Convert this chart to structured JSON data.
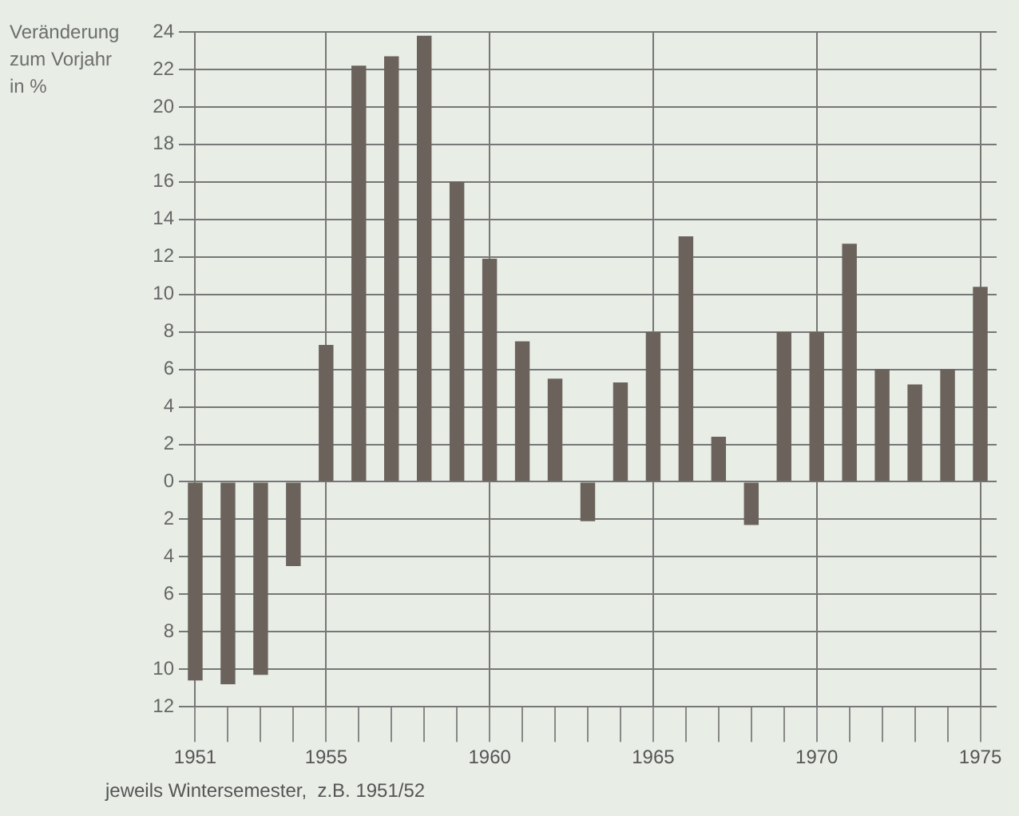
{
  "chart_data": {
    "type": "bar",
    "ylabel": "Veränderung zum Vorjahr in %",
    "xlabel": "jeweils Wintersemester,  z.B. 1951/52",
    "categories": [
      "1951",
      null,
      null,
      null,
      "1955",
      null,
      null,
      null,
      null,
      "1960",
      null,
      null,
      null,
      null,
      "1965",
      null,
      null,
      null,
      null,
      "1970",
      null,
      null,
      null,
      null,
      "1975"
    ],
    "values": [
      -10.6,
      -10.8,
      -10.3,
      -4.5,
      7.3,
      22.2,
      22.7,
      23.8,
      16.0,
      11.9,
      7.5,
      5.5,
      -2.1,
      5.3,
      8.0,
      13.1,
      2.4,
      -2.3,
      8.0,
      8.0,
      12.7,
      6.0,
      5.2,
      6.0,
      10.4
    ],
    "color": "#6b625c",
    "ylim": [
      -12,
      24
    ],
    "yticks": [
      {
        "value": -12,
        "label": "12"
      },
      {
        "value": -10,
        "label": "10"
      },
      {
        "value": -8,
        "label": "8"
      },
      {
        "value": -6,
        "label": "6"
      },
      {
        "value": -4,
        "label": "4"
      },
      {
        "value": -2,
        "label": "2"
      },
      0,
      2,
      4,
      6,
      8,
      10,
      12,
      14,
      16,
      18,
      20,
      22,
      24
    ],
    "grid": true
  }
}
